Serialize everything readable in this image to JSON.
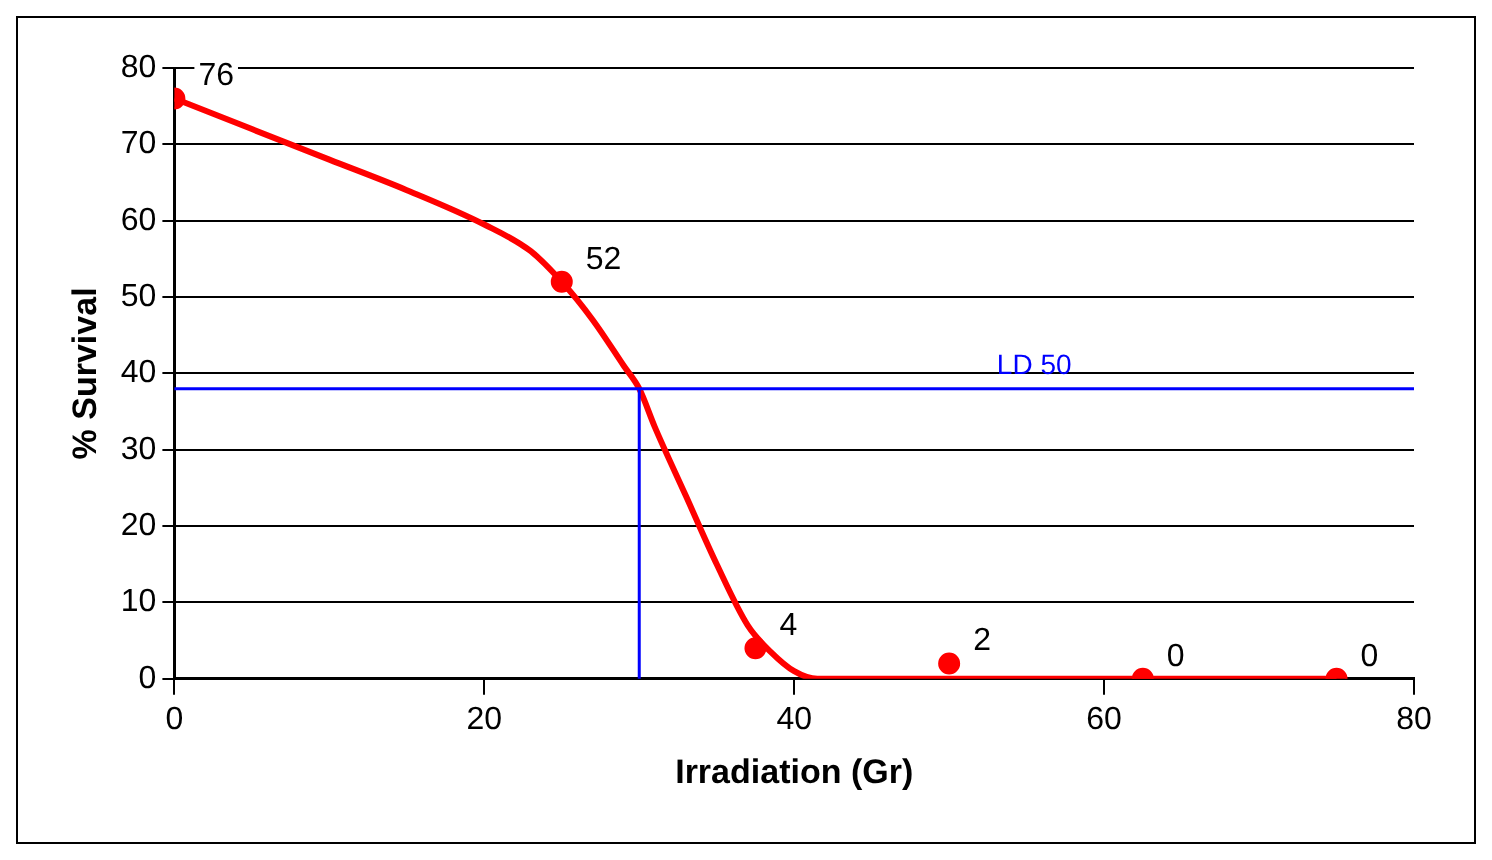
{
  "chart_data": {
    "type": "scatter",
    "xlabel": "Irradiation (Gr)",
    "ylabel": "% Survival",
    "xlim": [
      0,
      80
    ],
    "xticks": [
      0,
      20,
      40,
      60,
      80
    ],
    "ylim": [
      0,
      80
    ],
    "yticks": [
      0,
      10,
      20,
      30,
      40,
      50,
      60,
      70,
      80
    ],
    "grid": "y",
    "marker": "circle",
    "series": [
      {
        "type": "scatter",
        "color": "#ff0000",
        "x": [
          0,
          25,
          37.5,
          50,
          62.5,
          75
        ],
        "values": [
          76,
          52,
          4,
          2,
          0,
          0
        ],
        "value_labels": [
          "76",
          "52",
          "4",
          "2",
          "0",
          "0"
        ]
      },
      {
        "type": "line",
        "color": "#ff0000",
        "marker": "none",
        "x": [
          0,
          5,
          10,
          15,
          20,
          23,
          25,
          27,
          29,
          30,
          31,
          33,
          35,
          37,
          38.5,
          40,
          41.5,
          45,
          50,
          60,
          75
        ],
        "values": [
          76,
          72,
          68,
          64,
          59.5,
          56,
          52,
          47,
          41,
          38,
          33,
          24,
          15,
          7,
          3.5,
          1,
          0,
          0,
          0,
          0,
          0
        ]
      }
    ],
    "ref_lines": [
      {
        "axis": "y",
        "value": 38,
        "label": "LD 50",
        "color": "#0000ff"
      },
      {
        "axis": "x",
        "value": 30,
        "color": "#0000ff"
      }
    ]
  }
}
